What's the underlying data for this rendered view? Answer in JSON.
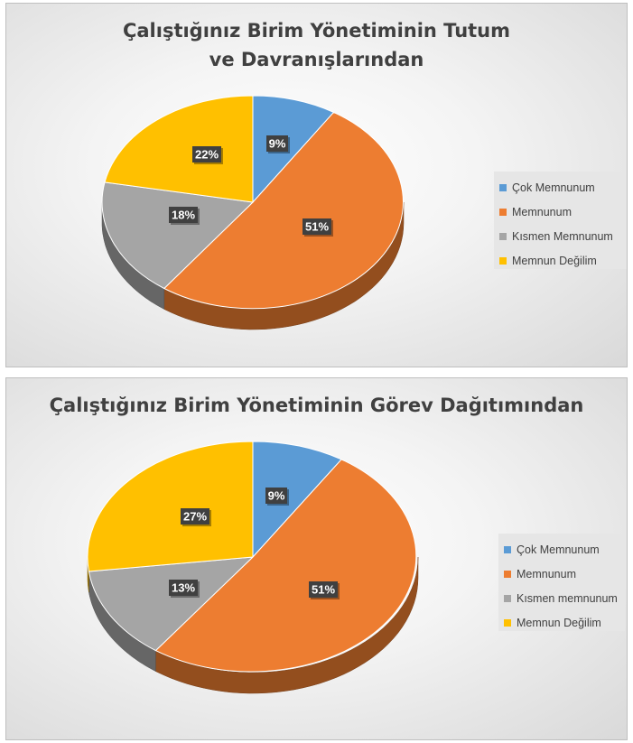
{
  "chart_data": [
    {
      "type": "pie",
      "title": "Çalıştığınız Birim Yönetiminin Tutum ve Davranışlarından",
      "labels": [
        "Çok Memnunum",
        "Memnunum",
        "Kısmen Memnunum",
        "Memnun Değilim"
      ],
      "values": [
        9,
        51,
        18,
        22
      ],
      "data_labels": [
        "9%",
        "51%",
        "18%",
        "22%"
      ],
      "colors": [
        "#5b9bd5",
        "#ed7d31",
        "#a5a5a5",
        "#ffc000"
      ],
      "legend_position": "right"
    },
    {
      "type": "pie",
      "title": "Çalıştığınız Birim Yönetiminin Görev Dağıtımından",
      "labels": [
        "Çok Memnunum",
        "Memnunum",
        "Kısmen memnunum",
        "Memnun Değilim"
      ],
      "values": [
        9,
        51,
        13,
        27
      ],
      "data_labels": [
        "9%",
        "51%",
        "13%",
        "27%"
      ],
      "colors": [
        "#5b9bd5",
        "#ed7d31",
        "#a5a5a5",
        "#ffc000"
      ],
      "legend_position": "right"
    }
  ]
}
